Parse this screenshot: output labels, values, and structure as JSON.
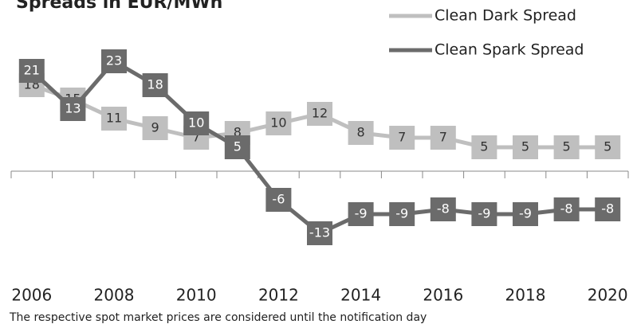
{
  "chart_data": {
    "type": "line",
    "title": "Spreads in EUR/MWh",
    "footnote": "The respective spot market prices are considered until the notification day",
    "categories": [
      "2006",
      null,
      "2008",
      null,
      "2010",
      null,
      "2012",
      null,
      "2014",
      null,
      "2016",
      null,
      "2018",
      null,
      "2020"
    ],
    "series": [
      {
        "name": "Clean Dark Spread",
        "color": "#bfbfbf",
        "label_color": "#333333",
        "values": [
          18,
          15,
          11,
          9,
          7,
          8,
          10,
          12,
          8,
          7,
          7,
          5,
          5,
          5,
          5
        ]
      },
      {
        "name": "Clean Spark Spread",
        "color": "#6b6b6b",
        "label_color": "#ffffff",
        "values": [
          21,
          13,
          23,
          18,
          10,
          5,
          -6,
          -13,
          -9,
          -9,
          -8,
          -9,
          -9,
          -8,
          -8
        ]
      }
    ],
    "ylim": [
      -20,
      30
    ]
  }
}
